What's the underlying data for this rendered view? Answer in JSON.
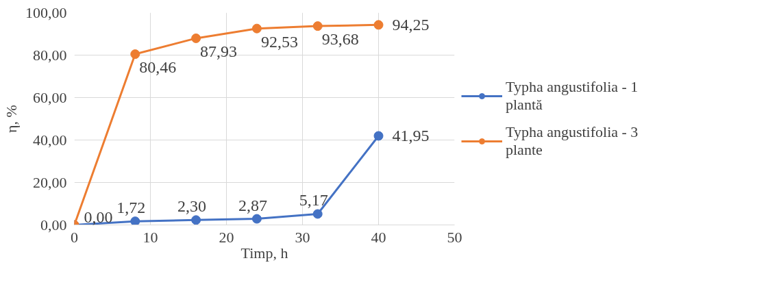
{
  "chart_data": {
    "type": "line",
    "xlabel": "Timp, h",
    "ylabel": "η, %",
    "x": [
      0,
      8,
      16,
      24,
      32,
      40
    ],
    "series": [
      {
        "name": "Typha angustifolia - 1 plantă",
        "color": "#4472c4",
        "values": [
          0,
          1.72,
          2.3,
          2.87,
          5.17,
          41.95
        ],
        "value_labels": [
          "0,00",
          "1,72",
          "2,30",
          "2,87",
          "5,17",
          "41,95"
        ]
      },
      {
        "name": "Typha angustifolia - 3 plante",
        "color": "#ed7d31",
        "values": [
          0,
          80.46,
          87.93,
          92.53,
          93.68,
          94.25
        ],
        "value_labels": [
          null,
          "80,46",
          "87,93",
          "92,53",
          "93,68",
          "94,25"
        ]
      }
    ],
    "xlim": [
      0,
      50
    ],
    "xticks": [
      0,
      10,
      20,
      30,
      40,
      50
    ],
    "ylim": [
      0,
      100
    ],
    "yticks": [
      {
        "value": 0,
        "label": "0,00"
      },
      {
        "value": 20,
        "label": "20,00"
      },
      {
        "value": 40,
        "label": "40,00"
      },
      {
        "value": 60,
        "label": "60,00"
      },
      {
        "value": 80,
        "label": "80,00"
      },
      {
        "value": 100,
        "label": "100,00"
      }
    ],
    "grid": true,
    "legend": "right",
    "marker": "circle",
    "line_style": "solid"
  }
}
